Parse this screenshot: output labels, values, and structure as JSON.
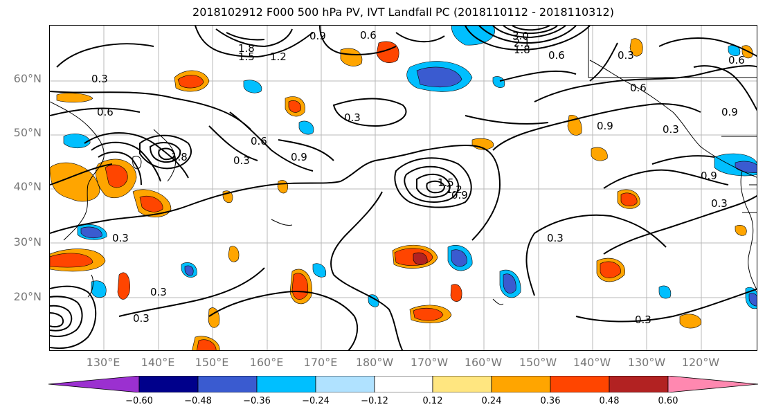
{
  "title": "2018102912 F000 500 hPa PV, IVT Landfall PC (2018110112 - 2018110312)",
  "latitude_labels": [
    "60°N",
    "50°N",
    "40°N",
    "30°N",
    "20°N"
  ],
  "longitude_labels": [
    "130°E",
    "140°E",
    "150°E",
    "160°E",
    "170°E",
    "180°W",
    "170°W",
    "160°W",
    "150°W",
    "140°W",
    "130°W",
    "120°W"
  ],
  "contour_labels": [
    "0.6",
    "1.8",
    "1.5",
    "1.2",
    "0.9",
    "3.0",
    "2.1",
    "1.8",
    "0.6",
    "0.3",
    "0.3",
    "0.6",
    "0.6",
    "0.6",
    "0.9",
    "0.3",
    "1.8",
    "0.9",
    "0.3",
    "0.3",
    "1.5",
    "1.2",
    "0.9",
    "0.9",
    "0.3",
    "0.3",
    "0.3",
    "0.3",
    "0.3",
    "0.6",
    "0.9",
    "0.3"
  ],
  "colorbar": {
    "ticks": [
      "−0.60",
      "−0.48",
      "−0.36",
      "−0.24",
      "−0.12",
      "0.12",
      "0.24",
      "0.36",
      "0.48",
      "0.60"
    ],
    "colors": [
      "#9b30d0",
      "#00008b",
      "#3a5bd0",
      "#00bfff",
      "#b0e2ff",
      "#ffffff",
      "#ffe680",
      "#ffa500",
      "#ff4500",
      "#b22222",
      "#ff88b0"
    ]
  }
}
